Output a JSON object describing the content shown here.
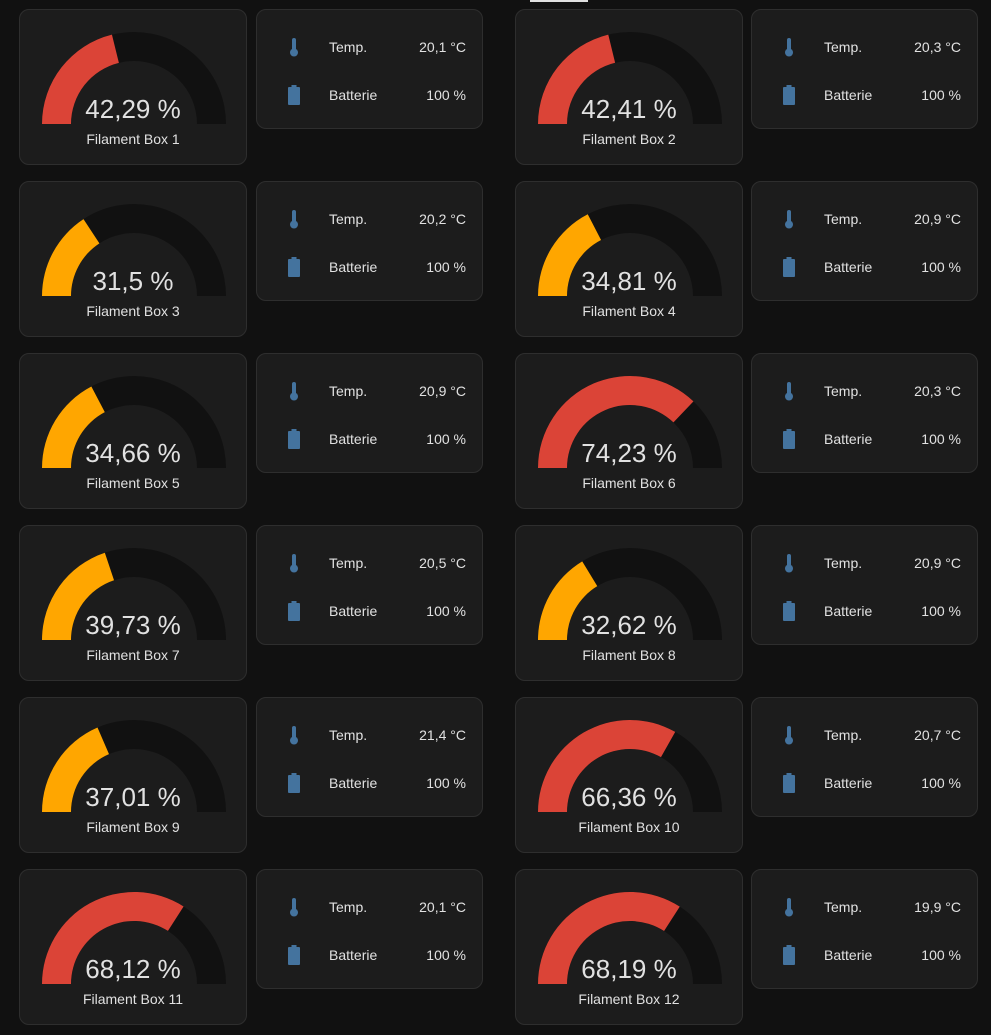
{
  "colors": {
    "red": "#db4437",
    "orange": "#ffa600",
    "track": "#111111",
    "icon": "#44739e"
  },
  "labels": {
    "temp": "Temp.",
    "battery": "Batterie"
  },
  "boxes": [
    {
      "name": "Filament Box 1",
      "value": 42.29,
      "display": "42,29 %",
      "temp": "20,1 °C",
      "battery": "100 %"
    },
    {
      "name": "Filament Box 2",
      "value": 42.41,
      "display": "42,41 %",
      "temp": "20,3 °C",
      "battery": "100 %"
    },
    {
      "name": "Filament Box 3",
      "value": 31.5,
      "display": "31,5 %",
      "temp": "20,2 °C",
      "battery": "100 %"
    },
    {
      "name": "Filament Box 4",
      "value": 34.81,
      "display": "34,81 %",
      "temp": "20,9 °C",
      "battery": "100 %"
    },
    {
      "name": "Filament Box 5",
      "value": 34.66,
      "display": "34,66 %",
      "temp": "20,9 °C",
      "battery": "100 %"
    },
    {
      "name": "Filament Box 6",
      "value": 74.23,
      "display": "74,23 %",
      "temp": "20,3 °C",
      "battery": "100 %"
    },
    {
      "name": "Filament Box 7",
      "value": 39.73,
      "display": "39,73 %",
      "temp": "20,5 °C",
      "battery": "100 %"
    },
    {
      "name": "Filament Box 8",
      "value": 32.62,
      "display": "32,62 %",
      "temp": "20,9 °C",
      "battery": "100 %"
    },
    {
      "name": "Filament Box 9",
      "value": 37.01,
      "display": "37,01 %",
      "temp": "21,4 °C",
      "battery": "100 %"
    },
    {
      "name": "Filament Box 10",
      "value": 66.36,
      "display": "66,36 %",
      "temp": "20,7 °C",
      "battery": "100 %"
    },
    {
      "name": "Filament Box 11",
      "value": 68.12,
      "display": "68,12 %",
      "temp": "20,1 °C",
      "battery": "100 %"
    },
    {
      "name": "Filament Box 12",
      "value": 68.19,
      "display": "68,19 %",
      "temp": "19,9 °C",
      "battery": "100 %"
    }
  ]
}
